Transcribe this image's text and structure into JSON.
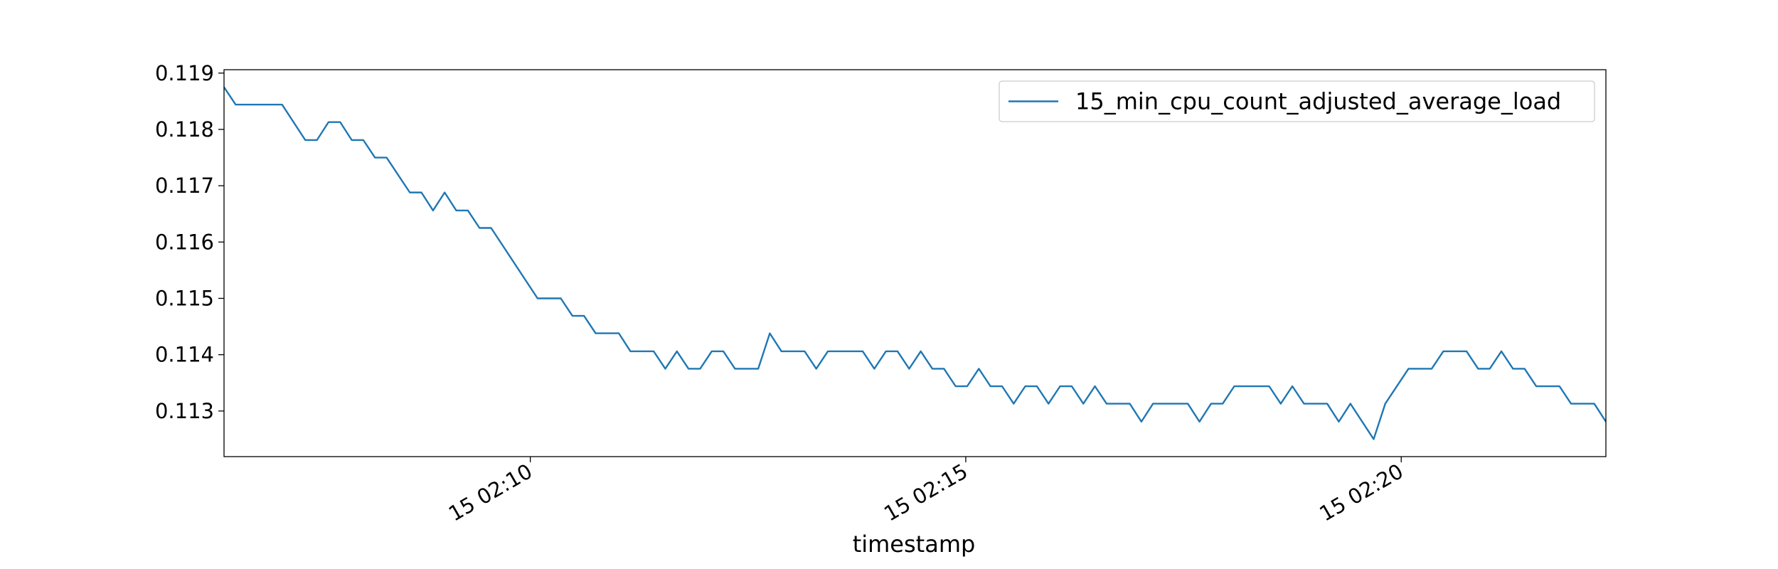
{
  "chart_data": {
    "type": "line",
    "xlabel": "timestamp",
    "x": [
      "15 02:06:29",
      "15 02:06:37",
      "15 02:07:09",
      "15 02:07:25",
      "15 02:07:33",
      "15 02:07:41",
      "15 02:07:49",
      "15 02:07:57",
      "15 02:08:05",
      "15 02:08:13",
      "15 02:08:21",
      "15 02:08:37",
      "15 02:08:45",
      "15 02:08:53",
      "15 02:09:01",
      "15 02:09:09",
      "15 02:09:17",
      "15 02:09:25",
      "15 02:09:33",
      "15 02:10:05",
      "15 02:10:21",
      "15 02:10:29",
      "15 02:10:37",
      "15 02:10:45",
      "15 02:11:01",
      "15 02:11:09",
      "15 02:11:25",
      "15 02:11:33",
      "15 02:11:41",
      "15 02:11:49",
      "15 02:11:57",
      "15 02:12:05",
      "15 02:12:13",
      "15 02:12:21",
      "15 02:12:37",
      "15 02:12:45",
      "15 02:12:53",
      "15 02:13:09",
      "15 02:13:17",
      "15 02:13:25",
      "15 02:13:49",
      "15 02:13:57",
      "15 02:14:05",
      "15 02:14:13",
      "15 02:14:21",
      "15 02:14:29",
      "15 02:14:37",
      "15 02:14:45",
      "15 02:14:53",
      "15 02:15:01",
      "15 02:15:09",
      "15 02:15:17",
      "15 02:15:25",
      "15 02:15:33",
      "15 02:15:41",
      "15 02:15:49",
      "15 02:15:57",
      "15 02:16:05",
      "15 02:16:13",
      "15 02:16:21",
      "15 02:16:29",
      "15 02:16:37",
      "15 02:16:53",
      "15 02:17:01",
      "15 02:17:09",
      "15 02:17:33",
      "15 02:17:41",
      "15 02:17:49",
      "15 02:17:57",
      "15 02:18:05",
      "15 02:18:29",
      "15 02:18:37",
      "15 02:18:45",
      "15 02:18:53",
      "15 02:19:09",
      "15 02:19:17",
      "15 02:19:25",
      "15 02:19:41",
      "15 02:19:49",
      "15 02:20:05",
      "15 02:20:21",
      "15 02:20:29",
      "15 02:20:45",
      "15 02:20:53",
      "15 02:21:01",
      "15 02:21:09",
      "15 02:21:17",
      "15 02:21:25",
      "15 02:21:33",
      "15 02:21:49",
      "15 02:21:57",
      "15 02:22:13",
      "15 02:22:21"
    ],
    "series": [
      {
        "name": "15_min_cpu_count_adjusted_average_load",
        "color": "#1f77b4",
        "values": [
          0.11875,
          0.11844,
          0.11844,
          0.11781,
          0.11781,
          0.11813,
          0.11813,
          0.11781,
          0.11781,
          0.1175,
          0.1175,
          0.11688,
          0.11688,
          0.11656,
          0.11688,
          0.11656,
          0.11656,
          0.11625,
          0.11625,
          0.115,
          0.115,
          0.11469,
          0.11469,
          0.11438,
          0.11438,
          0.11406,
          0.11406,
          0.11375,
          0.11406,
          0.11375,
          0.11375,
          0.11406,
          0.11406,
          0.11375,
          0.11375,
          0.11438,
          0.11406,
          0.11406,
          0.11375,
          0.11406,
          0.11406,
          0.11375,
          0.11406,
          0.11406,
          0.11375,
          0.11406,
          0.11375,
          0.11375,
          0.11344,
          0.11344,
          0.11375,
          0.11344,
          0.11344,
          0.11313,
          0.11344,
          0.11344,
          0.11313,
          0.11344,
          0.11344,
          0.11313,
          0.11344,
          0.11313,
          0.11313,
          0.11281,
          0.11313,
          0.11313,
          0.11281,
          0.11313,
          0.11313,
          0.11344,
          0.11344,
          0.11313,
          0.11344,
          0.11313,
          0.11313,
          0.11281,
          0.11313,
          0.1125,
          0.11313,
          0.11375,
          0.11375,
          0.11406,
          0.11406,
          0.11375,
          0.11375,
          0.11406,
          0.11375,
          0.11375,
          0.11344,
          0.11344,
          0.11313,
          0.11313,
          0.11281
        ]
      }
    ],
    "xlim": [
      "15 02:06:29",
      "15 02:22:21"
    ],
    "xticks": [
      "15 02:10",
      "15 02:15",
      "15 02:20"
    ],
    "ylim": [
      0.11219,
      0.11906
    ],
    "yticks": [
      0.113,
      0.114,
      0.115,
      0.116,
      0.117,
      0.118,
      0.119
    ],
    "legend": "upper right"
  }
}
